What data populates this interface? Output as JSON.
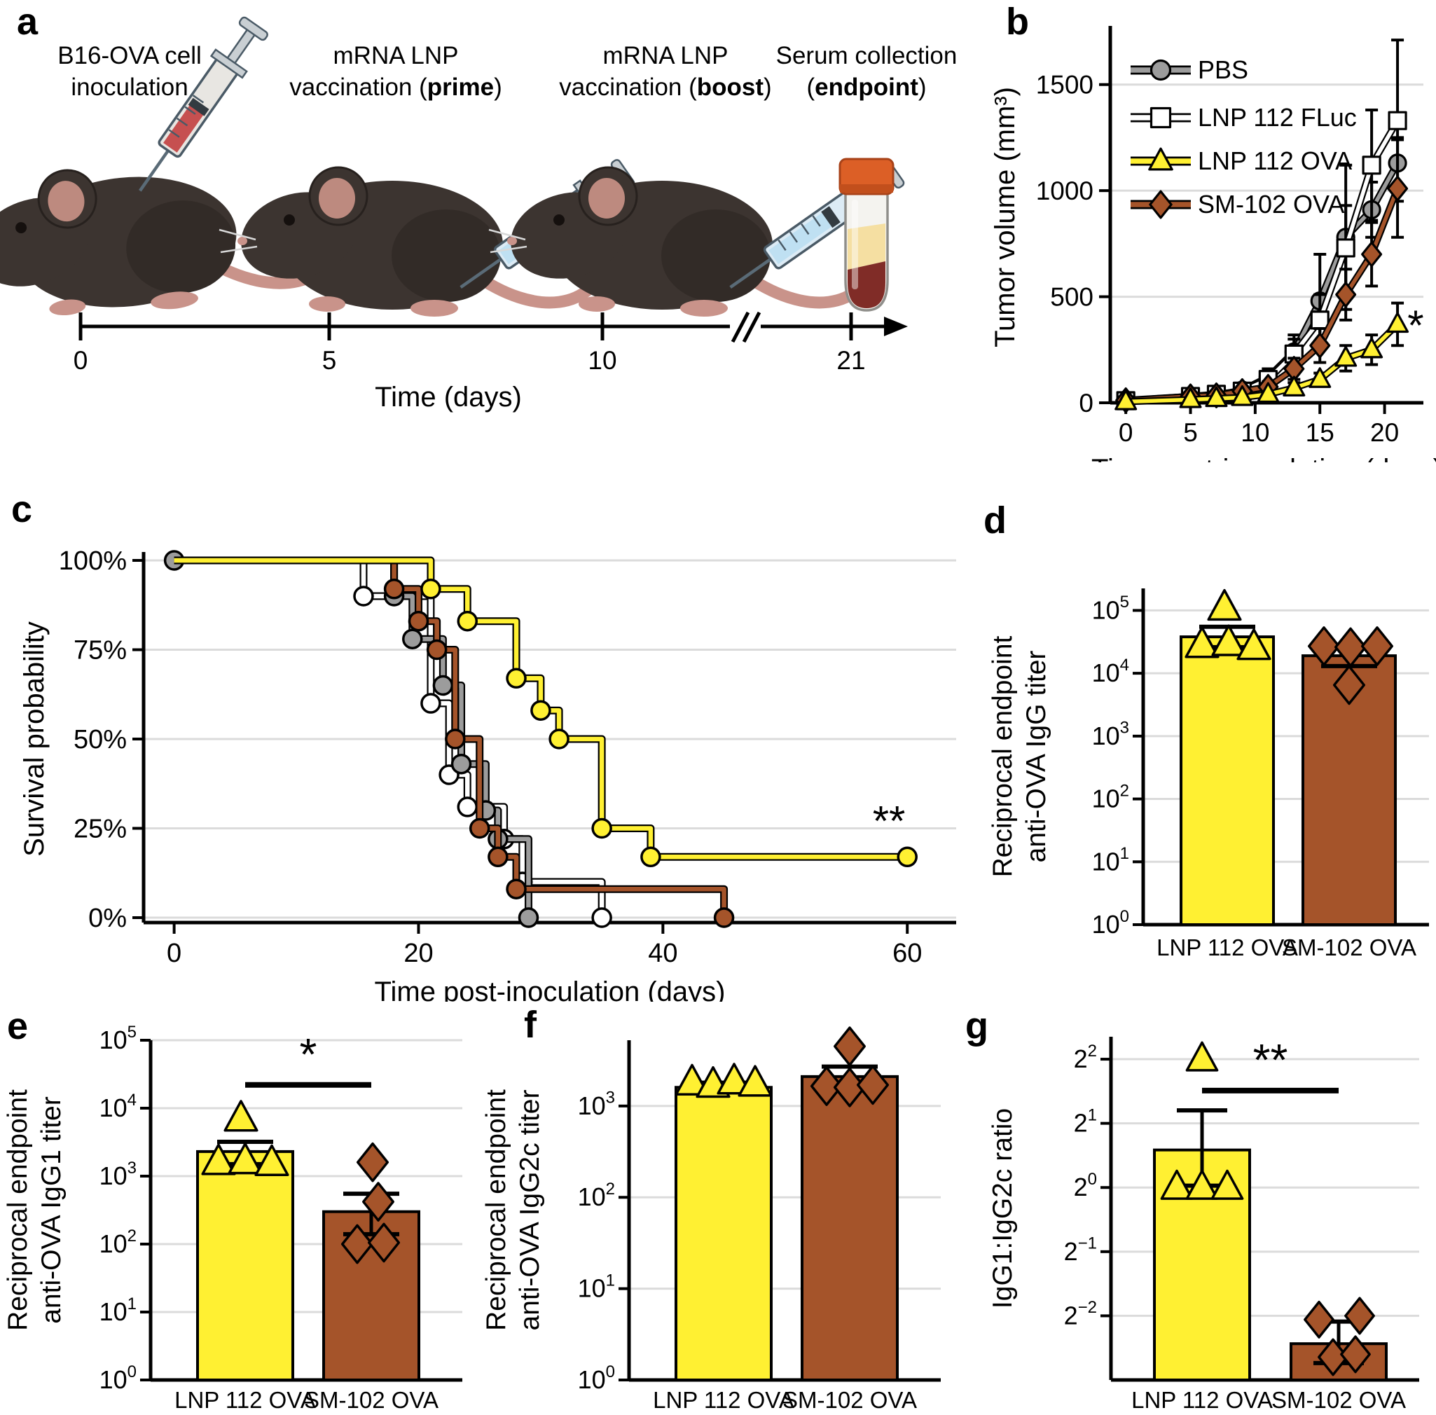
{
  "figure": {
    "background": "#ffffff",
    "panel_letters": {
      "a": "a",
      "b": "b",
      "c": "c",
      "d": "d",
      "e": "e",
      "f": "f",
      "g": "g"
    }
  },
  "colors": {
    "yellow": "#FFF032",
    "brown": "#A5542A",
    "gray": "#9C9C9C",
    "white": "#FFFFFF",
    "grid": "#DBDBDB",
    "black": "#000000",
    "tube_cap": "#DC5F26",
    "serum": "#F5DFA2",
    "blood": "#802C27"
  },
  "panel_a": {
    "titles": [
      {
        "line1": "B16-OVA cell",
        "line2_prefix": "inoculation",
        "line2_bold": "",
        "line2_suffix": ""
      },
      {
        "line1": "mRNA LNP",
        "line2_prefix": "vaccination (",
        "line2_bold": "prime",
        "line2_suffix": ")"
      },
      {
        "line1": "mRNA LNP",
        "line2_prefix": "vaccination (",
        "line2_bold": "boost",
        "line2_suffix": ")"
      },
      {
        "line1": "Serum collection",
        "line2_prefix": "(",
        "line2_bold": "endpoint",
        "line2_suffix": ")"
      }
    ],
    "timeline": {
      "tick_labels": [
        "0",
        "5",
        "10",
        "21"
      ],
      "axis_label": "Time (days)"
    }
  },
  "chart_data": [
    {
      "id": "b",
      "type": "line",
      "xlabel": "Time post-inoculation (days)",
      "ylabel": "Tumor volume (mm³)",
      "xlim": [
        -1.2,
        23
      ],
      "ylim": [
        0,
        1750
      ],
      "xticks": [
        0,
        5,
        10,
        15,
        20
      ],
      "yticks": [
        0,
        500,
        1000,
        1500
      ],
      "x": [
        0,
        5,
        7,
        9,
        11,
        13,
        15,
        17,
        19,
        21
      ],
      "series": [
        {
          "name": "PBS",
          "marker": "circle",
          "color": "#9C9C9C",
          "values": [
            10,
            30,
            35,
            60,
            120,
            240,
            480,
            780,
            910,
            1130
          ],
          "errors": [
            5,
            10,
            10,
            20,
            40,
            80,
            220,
            340,
            130,
            120
          ]
        },
        {
          "name": "LNP 112 FLuc",
          "marker": "square",
          "color": "#FFFFFF",
          "values": [
            10,
            30,
            40,
            55,
            110,
            230,
            390,
            730,
            1120,
            1330
          ],
          "errors": [
            5,
            10,
            10,
            15,
            35,
            70,
            120,
            200,
            260,
            380
          ]
        },
        {
          "name": "LNP 112 OVA",
          "marker": "triangle",
          "color": "#FFF032",
          "values": [
            5,
            15,
            20,
            25,
            40,
            70,
            110,
            210,
            250,
            370
          ],
          "errors": [
            3,
            5,
            6,
            10,
            12,
            25,
            30,
            60,
            70,
            100
          ]
        },
        {
          "name": "SM-102 OVA",
          "marker": "diamond",
          "color": "#A5542A",
          "values": [
            12,
            30,
            35,
            55,
            75,
            160,
            270,
            510,
            700,
            1010
          ],
          "errors": [
            5,
            10,
            10,
            15,
            25,
            50,
            80,
            120,
            150,
            230
          ]
        }
      ],
      "annotation": {
        "text": "*",
        "x": 22.4,
        "y": 370
      }
    },
    {
      "id": "c",
      "type": "km",
      "xlabel": "Time post-inoculation (days)",
      "ylabel": "Survival probability",
      "xlim": [
        -2.5,
        64
      ],
      "ylim": [
        0,
        100
      ],
      "xticks": [
        0,
        20,
        40,
        60
      ],
      "yticks": [
        0,
        25,
        50,
        75,
        100
      ],
      "ytick_labels": [
        "0%",
        "25%",
        "50%",
        "75%",
        "100%"
      ],
      "series": [
        {
          "name": "LNP 112 FLuc",
          "color": "#FFFFFF",
          "steps": [
            [
              0,
              100
            ],
            [
              15.5,
              90
            ],
            [
              21,
              60
            ],
            [
              22.5,
              40
            ],
            [
              24,
              31
            ],
            [
              27,
              22
            ],
            [
              28.5,
              10
            ],
            [
              35,
              0
            ]
          ],
          "end": 35
        },
        {
          "name": "PBS",
          "color": "#9C9C9C",
          "start_marker": true,
          "steps": [
            [
              0,
              100
            ],
            [
              18,
              90
            ],
            [
              19.5,
              78
            ],
            [
              22,
              65
            ],
            [
              23.5,
              43
            ],
            [
              25.5,
              30
            ],
            [
              26.5,
              22
            ],
            [
              29,
              0
            ]
          ],
          "end": 29
        },
        {
          "name": "SM-102 OVA",
          "color": "#A5542A",
          "steps": [
            [
              0,
              100
            ],
            [
              18,
              92
            ],
            [
              20,
              83
            ],
            [
              21.5,
              75
            ],
            [
              23,
              50
            ],
            [
              25,
              25
            ],
            [
              26.5,
              17
            ],
            [
              28,
              8
            ],
            [
              45,
              0
            ]
          ],
          "end": 45
        },
        {
          "name": "LNP 112 OVA",
          "color": "#FFF032",
          "end_marker": true,
          "steps": [
            [
              0,
              100
            ],
            [
              21,
              92
            ],
            [
              24,
              83
            ],
            [
              28,
              67
            ],
            [
              30,
              58
            ],
            [
              31.5,
              50
            ],
            [
              35,
              25
            ],
            [
              39,
              17
            ]
          ],
          "end": 60
        }
      ],
      "annotation": {
        "text": "**",
        "x": 58.5,
        "y": 23
      }
    },
    {
      "id": "d",
      "type": "bar",
      "base": 10,
      "exp_lim": [
        0,
        5.35
      ],
      "yticks_exp": [
        0,
        1,
        2,
        3,
        4,
        5
      ],
      "ylabel_lines": [
        "Reciprocal endpoint",
        "anti-OVA IgG titer"
      ],
      "categories": [
        "LNP 112 OVA",
        "SM-102 OVA"
      ],
      "bars": [
        {
          "value": 38000,
          "color": "#FFF032",
          "marker": "triangle",
          "err": [
            26000,
            55000
          ],
          "points": [
            [
              110000,
              -4
            ],
            [
              28000,
              -36
            ],
            [
              30000,
              2
            ],
            [
              26000,
              38
            ]
          ]
        },
        {
          "value": 19000,
          "color": "#A5542A",
          "marker": "diamond",
          "err": [
            13000,
            25000
          ],
          "points": [
            [
              27000,
              -36
            ],
            [
              26000,
              2
            ],
            [
              27000,
              40
            ],
            [
              6500,
              0
            ]
          ]
        }
      ]
    },
    {
      "id": "e",
      "type": "bar",
      "base": 10,
      "exp_lim": [
        0,
        5
      ],
      "yticks_exp": [
        0,
        1,
        2,
        3,
        4,
        5
      ],
      "ylabel_lines": [
        "Reciprocal endpoint",
        "anti-OVA IgG1 titer"
      ],
      "categories": [
        "LNP 112 OVA",
        "SM-102 OVA"
      ],
      "bars": [
        {
          "value": 2300,
          "color": "#FFF032",
          "marker": "triangle",
          "err": [
            1500,
            3200
          ],
          "points": [
            [
              7000,
              -6
            ],
            [
              1600,
              -38
            ],
            [
              1650,
              0
            ],
            [
              1550,
              38
            ]
          ]
        },
        {
          "value": 300,
          "color": "#A5542A",
          "marker": "diamond",
          "err": [
            140,
            550
          ],
          "points": [
            [
              1600,
              2
            ],
            [
              420,
              10
            ],
            [
              100,
              -20
            ],
            [
              105,
              18
            ]
          ]
        }
      ],
      "sig": {
        "text": "*",
        "y": 22000
      }
    },
    {
      "id": "f",
      "type": "bar",
      "base": 10,
      "exp_lim": [
        0,
        3.72
      ],
      "yticks_exp": [
        0,
        1,
        2,
        3
      ],
      "ylabel_lines": [
        "Reciprocal endpoint",
        "anti-OVA IgG2c titer"
      ],
      "categories": [
        "LNP 112 OVA",
        "SM-102 OVA"
      ],
      "bars": [
        {
          "value": 1600,
          "color": "#FFF032",
          "marker": "triangle",
          "err": [
            1450,
            1800
          ],
          "points": [
            [
              1800,
              -45
            ],
            [
              1700,
              -15
            ],
            [
              1850,
              15
            ],
            [
              1750,
              45
            ]
          ]
        },
        {
          "value": 2100,
          "color": "#A5542A",
          "marker": "diamond",
          "err": [
            1600,
            2700
          ],
          "points": [
            [
              4500,
              0
            ],
            [
              1650,
              -33
            ],
            [
              1600,
              0
            ],
            [
              1700,
              33
            ]
          ]
        }
      ]
    },
    {
      "id": "g",
      "type": "bar",
      "base": 2,
      "exp_lim": [
        -3,
        2.35
      ],
      "yticks_exp": [
        2,
        1,
        0,
        -1,
        -2
      ],
      "ylabel_lines": [
        "IgG1:IgG2c ratio"
      ],
      "categories": [
        "LNP 112 OVA",
        "SM-102 OVA"
      ],
      "bars": [
        {
          "value": 1.5,
          "color": "#FFF032",
          "marker": "triangle",
          "err": [
            1.02,
            2.3
          ],
          "points": [
            [
              4,
              0
            ],
            [
              1,
              -36
            ],
            [
              1,
              0
            ],
            [
              1,
              36
            ]
          ]
        },
        {
          "value": 0.185,
          "color": "#A5542A",
          "marker": "diamond",
          "err": [
            0.15,
            0.235
          ],
          "points": [
            [
              0.24,
              -28
            ],
            [
              0.25,
              30
            ],
            [
              0.16,
              -8
            ],
            [
              0.165,
              24
            ]
          ]
        }
      ],
      "sig": {
        "text": "**",
        "y": 2.85
      }
    }
  ]
}
